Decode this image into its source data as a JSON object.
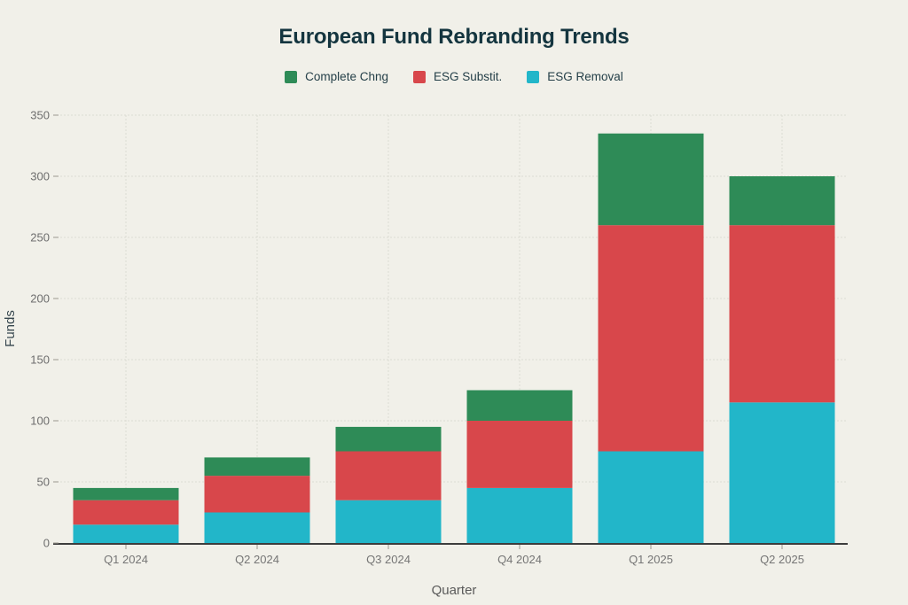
{
  "page": {
    "background": "#f1f0e9"
  },
  "colors": {
    "title_text": "#14353f",
    "legend_text": "#243f48",
    "ytick_text": "#6e6e6e",
    "xtick_text": "#757575",
    "ylabel_text": "#37474f",
    "xlabel_text": "#5a5a5a",
    "gridline": "#dcdbd2",
    "axis_line": "#3d3d3d",
    "tick_mark": "#9a998f"
  },
  "chart_data": {
    "type": "bar",
    "stacked": true,
    "title": "European Fund Rebranding Trends",
    "xlabel": "Quarter",
    "ylabel": "Funds",
    "categories": [
      "Q1 2024",
      "Q2 2024",
      "Q3 2024",
      "Q4 2024",
      "Q1 2025",
      "Q2 2025"
    ],
    "series": [
      {
        "name": "Complete Chng",
        "color": "#2e8b57",
        "values": [
          10,
          15,
          20,
          25,
          75,
          40
        ]
      },
      {
        "name": "ESG Substit.",
        "color": "#d8474b",
        "values": [
          20,
          30,
          40,
          55,
          185,
          145
        ]
      },
      {
        "name": "ESG Removal",
        "color": "#22b6c9",
        "values": [
          15,
          25,
          35,
          45,
          75,
          115
        ]
      }
    ],
    "stack_order_bottom_to_top": [
      "ESG Removal",
      "ESG Substit.",
      "Complete Chng"
    ],
    "totals": [
      45,
      70,
      95,
      125,
      335,
      300
    ],
    "ylim": [
      0,
      350
    ],
    "yticks": [
      0,
      50,
      100,
      150,
      200,
      250,
      300,
      350
    ],
    "grid": true,
    "legend_position": "top"
  }
}
